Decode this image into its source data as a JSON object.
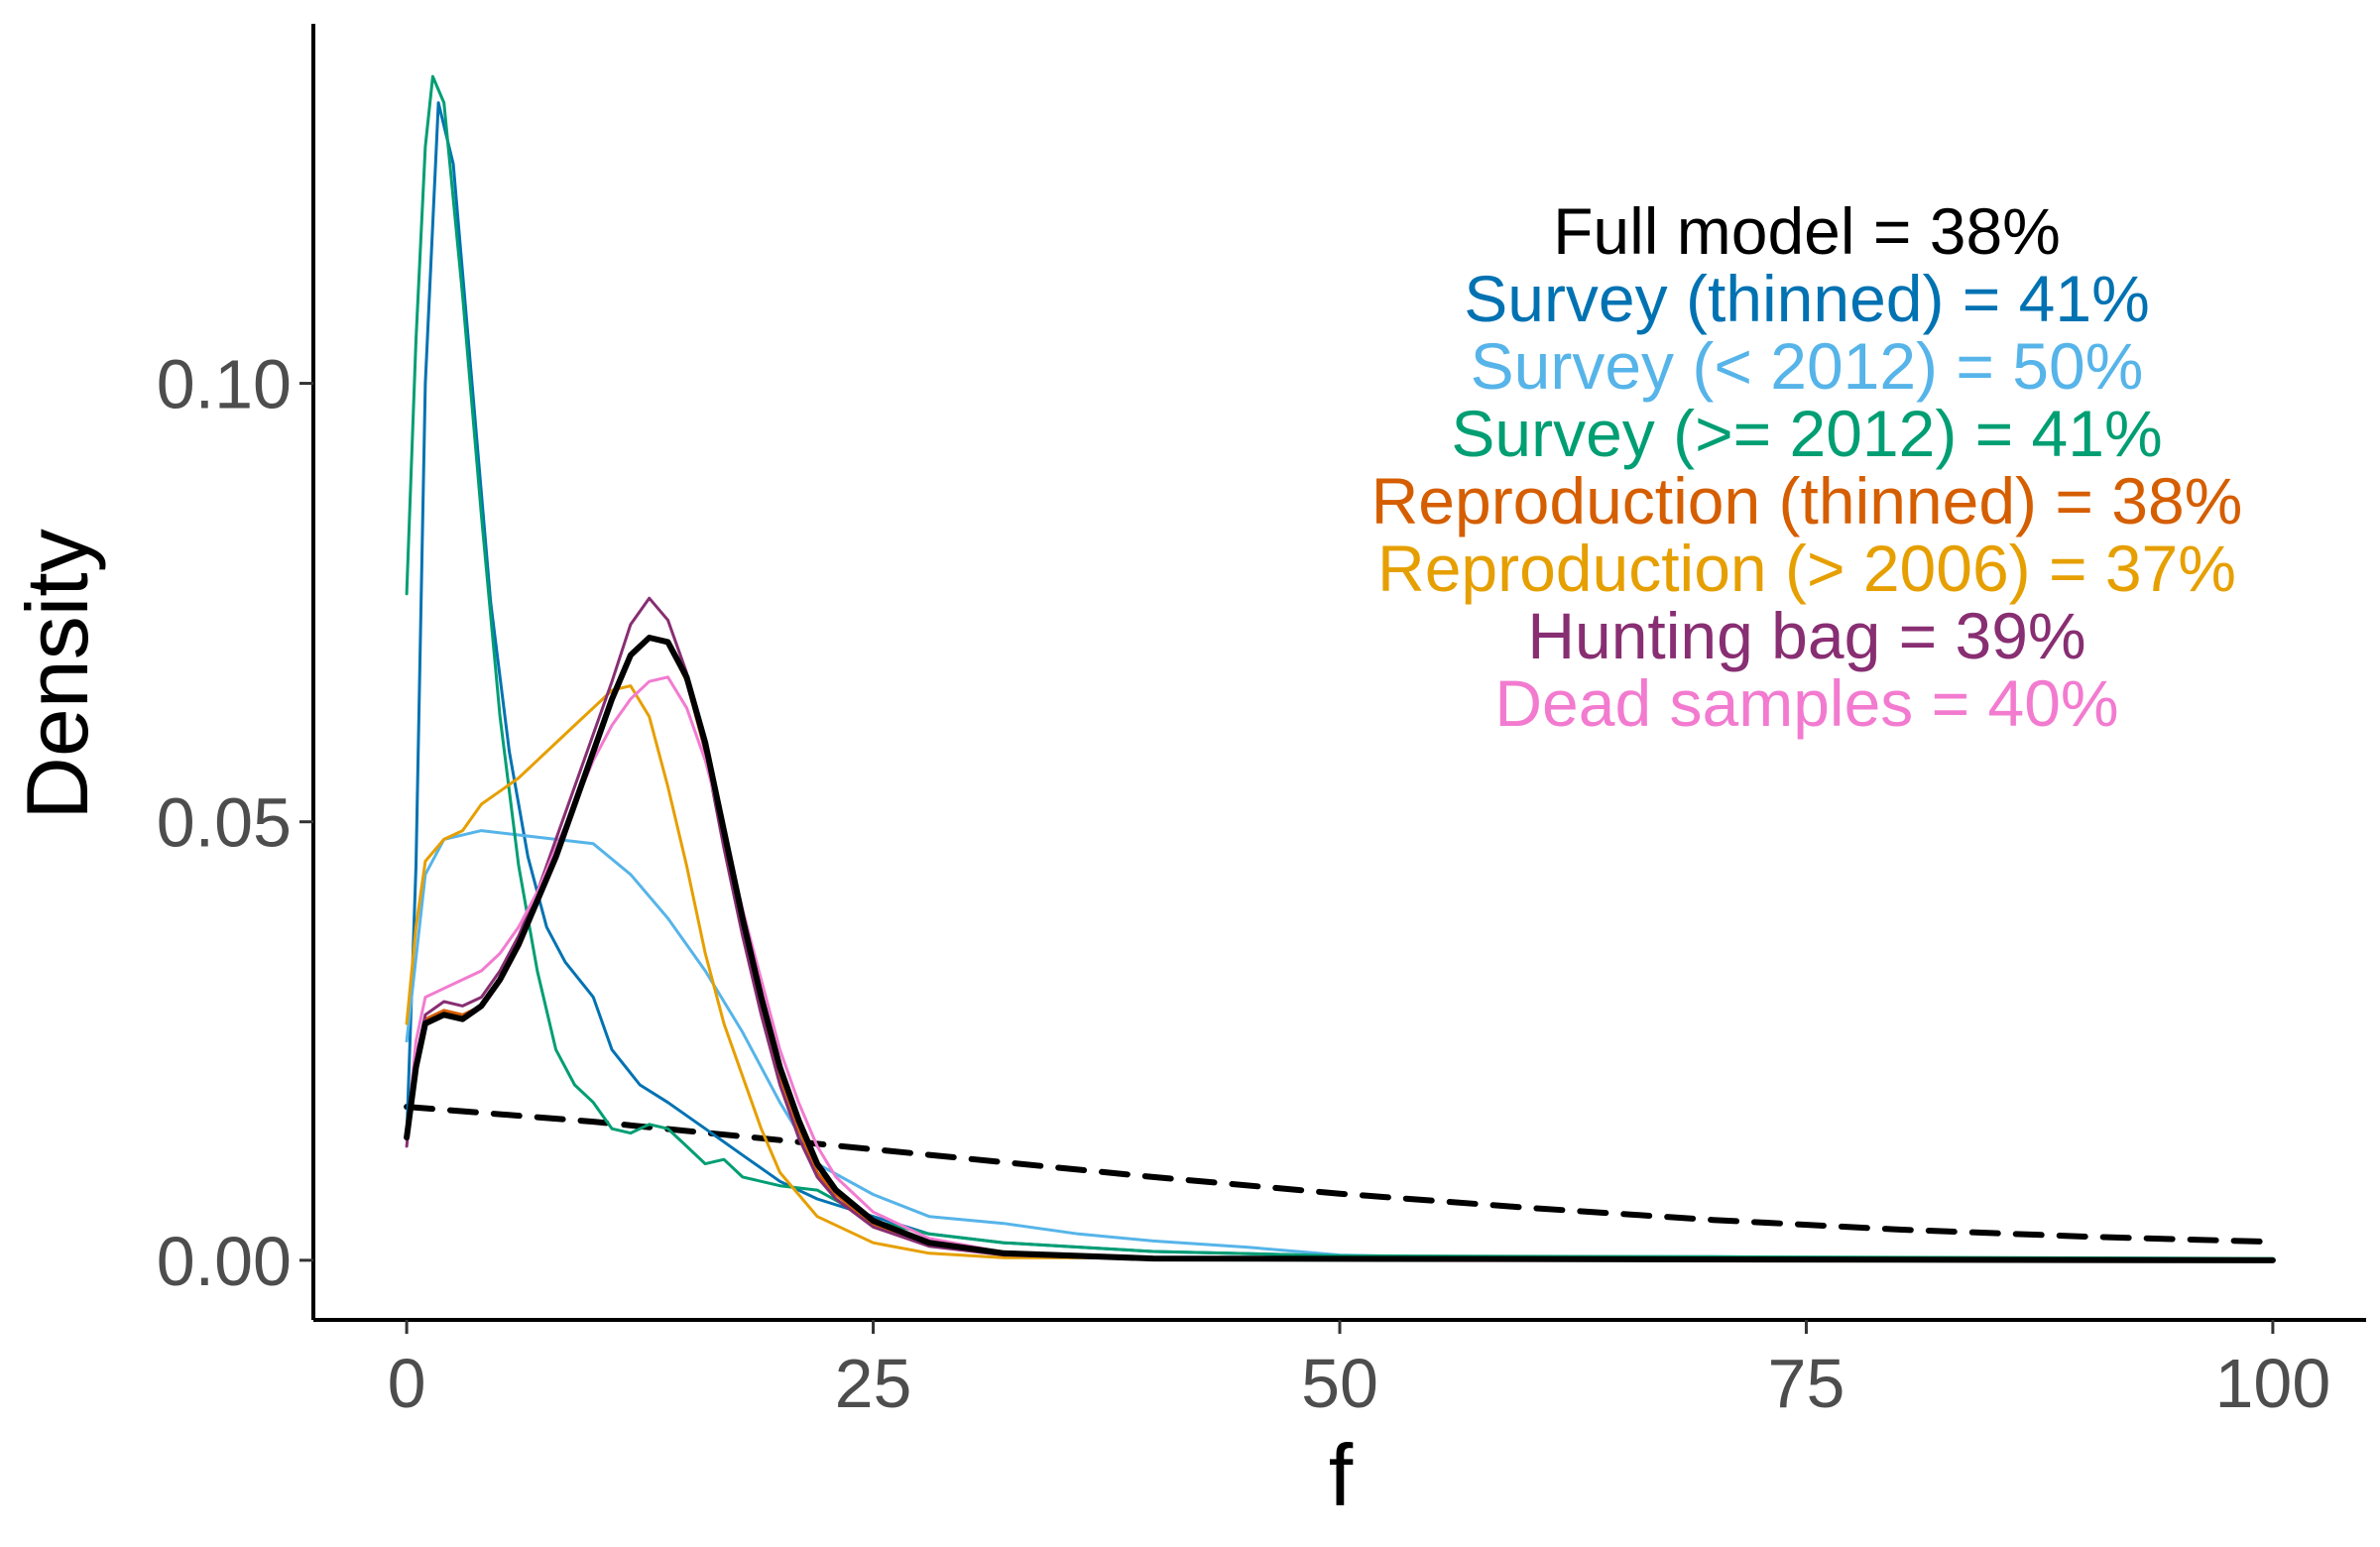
{
  "chart_data": {
    "type": "line",
    "xlabel": "f",
    "ylabel": "Density",
    "xlim": [
      -5,
      105
    ],
    "ylim": [
      -0.0068,
      0.141
    ],
    "x_ticks": [
      0,
      25,
      50,
      75,
      100
    ],
    "x_tick_labels": [
      "0",
      "25",
      "50",
      "75",
      "100"
    ],
    "y_ticks": [
      0.0,
      0.05,
      0.1
    ],
    "y_tick_labels": [
      "0.00",
      "0.05",
      "0.10"
    ],
    "grid": false,
    "legend": "none",
    "annotations": [
      {
        "text": "Full model = 38%",
        "color": "#000000"
      },
      {
        "text": "Survey (thinned) = 41%",
        "color": "#0072B2"
      },
      {
        "text": "Survey (< 2012) = 50%",
        "color": "#56B4E9"
      },
      {
        "text": "Survey (>= 2012) = 41%",
        "color": "#009E73"
      },
      {
        "text": "Reproduction (thinned) = 38%",
        "color": "#D55E00"
      },
      {
        "text": "Reproduction (> 2006) = 37%",
        "color": "#E69F00"
      },
      {
        "text": "Hunting bag = 39%",
        "color": "#882E72"
      },
      {
        "text": "Dead samples = 40%",
        "color": "#F27BD0"
      }
    ],
    "series": [
      {
        "color": "#000000",
        "dash": "dashed",
        "width": 6,
        "points": [
          [
            0,
            0.0175
          ],
          [
            10,
            0.0158
          ],
          [
            20,
            0.0137
          ],
          [
            30,
            0.0116
          ],
          [
            40,
            0.0095
          ],
          [
            50,
            0.0076
          ],
          [
            60,
            0.006
          ],
          [
            70,
            0.0046
          ],
          [
            80,
            0.0035
          ],
          [
            90,
            0.0027
          ],
          [
            100,
            0.0021
          ]
        ]
      },
      {
        "color": "#0072B2",
        "width": 3,
        "points": [
          [
            0,
            0.014
          ],
          [
            0.5,
            0.045
          ],
          [
            1,
            0.1
          ],
          [
            1.7,
            0.132
          ],
          [
            2.5,
            0.125
          ],
          [
            3.5,
            0.1
          ],
          [
            4.5,
            0.075
          ],
          [
            5.5,
            0.058
          ],
          [
            6.5,
            0.046
          ],
          [
            7.5,
            0.038
          ],
          [
            8.5,
            0.034
          ],
          [
            10,
            0.03
          ],
          [
            11,
            0.024
          ],
          [
            12.5,
            0.02
          ],
          [
            14,
            0.018
          ],
          [
            16,
            0.015
          ],
          [
            18,
            0.012
          ],
          [
            20,
            0.009
          ],
          [
            22,
            0.007
          ],
          [
            25,
            0.005
          ],
          [
            28,
            0.003
          ],
          [
            32,
            0.002
          ],
          [
            40,
            0.001
          ],
          [
            50,
            0.0005
          ],
          [
            60,
            0.0003
          ],
          [
            75,
            0.0002
          ],
          [
            100,
            0.0001
          ]
        ]
      },
      {
        "color": "#56B4E9",
        "width": 3,
        "points": [
          [
            0,
            0.025
          ],
          [
            1,
            0.044
          ],
          [
            2,
            0.048
          ],
          [
            4,
            0.049
          ],
          [
            6,
            0.0485
          ],
          [
            8,
            0.048
          ],
          [
            10,
            0.0475
          ],
          [
            12,
            0.044
          ],
          [
            14,
            0.039
          ],
          [
            16,
            0.033
          ],
          [
            18,
            0.026
          ],
          [
            20,
            0.018
          ],
          [
            22,
            0.011
          ],
          [
            25,
            0.0075
          ],
          [
            28,
            0.005
          ],
          [
            32,
            0.0042
          ],
          [
            36,
            0.003
          ],
          [
            40,
            0.0022
          ],
          [
            45,
            0.0015
          ],
          [
            50,
            0.0006
          ],
          [
            55,
            0.0004
          ],
          [
            65,
            0.0004
          ],
          [
            70,
            0.0004
          ],
          [
            80,
            0.0002
          ],
          [
            100,
            0.0001
          ]
        ]
      },
      {
        "color": "#009E73",
        "width": 3,
        "points": [
          [
            0,
            0.076
          ],
          [
            0.5,
            0.105
          ],
          [
            1,
            0.127
          ],
          [
            1.4,
            0.135
          ],
          [
            2,
            0.132
          ],
          [
            3,
            0.11
          ],
          [
            4,
            0.085
          ],
          [
            5,
            0.062
          ],
          [
            6,
            0.045
          ],
          [
            7,
            0.033
          ],
          [
            8,
            0.024
          ],
          [
            9,
            0.02
          ],
          [
            10,
            0.018
          ],
          [
            11,
            0.015
          ],
          [
            12,
            0.0145
          ],
          [
            13,
            0.0155
          ],
          [
            14,
            0.015
          ],
          [
            15,
            0.013
          ],
          [
            16,
            0.011
          ],
          [
            17,
            0.0115
          ],
          [
            18,
            0.0095
          ],
          [
            20,
            0.0085
          ],
          [
            22,
            0.008
          ],
          [
            25,
            0.0045
          ],
          [
            28,
            0.003
          ],
          [
            32,
            0.002
          ],
          [
            36,
            0.0015
          ],
          [
            40,
            0.001
          ],
          [
            50,
            0.0005
          ],
          [
            70,
            0.0004
          ],
          [
            100,
            0.0002
          ]
        ]
      },
      {
        "color": "#D55E00",
        "width": 3,
        "points": [
          [
            0,
            0.014
          ],
          [
            0.5,
            0.023
          ],
          [
            1,
            0.0275
          ],
          [
            2,
            0.0285
          ],
          [
            3,
            0.028
          ],
          [
            4,
            0.029
          ],
          [
            5,
            0.032
          ],
          [
            6,
            0.036
          ],
          [
            7,
            0.041
          ],
          [
            8,
            0.046
          ],
          [
            9,
            0.052
          ],
          [
            10,
            0.058
          ],
          [
            11,
            0.064
          ],
          [
            12,
            0.069
          ],
          [
            13,
            0.071
          ],
          [
            14,
            0.0705
          ],
          [
            15,
            0.066
          ],
          [
            16,
            0.058
          ],
          [
            17,
            0.048
          ],
          [
            18,
            0.038
          ],
          [
            19,
            0.029
          ],
          [
            20,
            0.021
          ],
          [
            21,
            0.015
          ],
          [
            22,
            0.01
          ],
          [
            23,
            0.0075
          ],
          [
            25,
            0.004
          ],
          [
            28,
            0.0018
          ],
          [
            32,
            0.0008
          ],
          [
            40,
            0.0002
          ],
          [
            100,
            0.0
          ]
        ]
      },
      {
        "color": "#E69F00",
        "width": 3,
        "points": [
          [
            0,
            0.027
          ],
          [
            0.5,
            0.038
          ],
          [
            1,
            0.0455
          ],
          [
            2,
            0.048
          ],
          [
            3,
            0.049
          ],
          [
            4,
            0.052
          ],
          [
            5,
            0.0535
          ],
          [
            6,
            0.055
          ],
          [
            7,
            0.057
          ],
          [
            8,
            0.059
          ],
          [
            9,
            0.061
          ],
          [
            10,
            0.063
          ],
          [
            11,
            0.065
          ],
          [
            12,
            0.0655
          ],
          [
            13,
            0.062
          ],
          [
            14,
            0.054
          ],
          [
            15,
            0.045
          ],
          [
            16,
            0.035
          ],
          [
            17,
            0.027
          ],
          [
            18,
            0.021
          ],
          [
            19,
            0.015
          ],
          [
            20,
            0.01
          ],
          [
            21,
            0.0075
          ],
          [
            22,
            0.005
          ],
          [
            25,
            0.002
          ],
          [
            28,
            0.0008
          ],
          [
            32,
            0.0003
          ],
          [
            100,
            0.0
          ]
        ]
      },
      {
        "color": "#882E72",
        "width": 3,
        "points": [
          [
            0,
            0.013
          ],
          [
            0.5,
            0.023
          ],
          [
            1,
            0.028
          ],
          [
            2,
            0.0295
          ],
          [
            3,
            0.029
          ],
          [
            4,
            0.03
          ],
          [
            5,
            0.033
          ],
          [
            6,
            0.037
          ],
          [
            7,
            0.042
          ],
          [
            8,
            0.048
          ],
          [
            9,
            0.054
          ],
          [
            10,
            0.06
          ],
          [
            11,
            0.066
          ],
          [
            12,
            0.0725
          ],
          [
            13,
            0.0755
          ],
          [
            14,
            0.073
          ],
          [
            15,
            0.067
          ],
          [
            16,
            0.058
          ],
          [
            17,
            0.047
          ],
          [
            18,
            0.037
          ],
          [
            19,
            0.028
          ],
          [
            20,
            0.02
          ],
          [
            21,
            0.014
          ],
          [
            22,
            0.0095
          ],
          [
            23,
            0.007
          ],
          [
            25,
            0.0038
          ],
          [
            28,
            0.0016
          ],
          [
            32,
            0.0006
          ],
          [
            40,
            0.0001
          ],
          [
            100,
            0.0
          ]
        ]
      },
      {
        "color": "#F27BD0",
        "width": 3,
        "points": [
          [
            0,
            0.014
          ],
          [
            0.5,
            0.025
          ],
          [
            1,
            0.03
          ],
          [
            2,
            0.031
          ],
          [
            3,
            0.032
          ],
          [
            4,
            0.033
          ],
          [
            5,
            0.035
          ],
          [
            6,
            0.038
          ],
          [
            7,
            0.042
          ],
          [
            8,
            0.047
          ],
          [
            9,
            0.052
          ],
          [
            10,
            0.057
          ],
          [
            11,
            0.061
          ],
          [
            12,
            0.064
          ],
          [
            13,
            0.066
          ],
          [
            14,
            0.0665
          ],
          [
            15,
            0.063
          ],
          [
            16,
            0.057
          ],
          [
            17,
            0.049
          ],
          [
            18,
            0.04
          ],
          [
            19,
            0.032
          ],
          [
            20,
            0.024
          ],
          [
            21,
            0.018
          ],
          [
            22,
            0.013
          ],
          [
            23,
            0.0095
          ],
          [
            25,
            0.0055
          ],
          [
            28,
            0.0025
          ],
          [
            32,
            0.0009
          ],
          [
            40,
            0.0002
          ],
          [
            100,
            0.0
          ]
        ]
      },
      {
        "color": "#000000",
        "width": 6,
        "points": [
          [
            0,
            0.014
          ],
          [
            0.5,
            0.022
          ],
          [
            1,
            0.027
          ],
          [
            2,
            0.028
          ],
          [
            3,
            0.0275
          ],
          [
            4,
            0.029
          ],
          [
            5,
            0.032
          ],
          [
            6,
            0.036
          ],
          [
            7,
            0.041
          ],
          [
            8,
            0.046
          ],
          [
            9,
            0.052
          ],
          [
            10,
            0.058
          ],
          [
            11,
            0.064
          ],
          [
            12,
            0.069
          ],
          [
            13,
            0.071
          ],
          [
            14,
            0.0705
          ],
          [
            15,
            0.0665
          ],
          [
            16,
            0.059
          ],
          [
            17,
            0.049
          ],
          [
            18,
            0.039
          ],
          [
            19,
            0.03
          ],
          [
            20,
            0.022
          ],
          [
            21,
            0.016
          ],
          [
            22,
            0.011
          ],
          [
            23,
            0.008
          ],
          [
            25,
            0.0045
          ],
          [
            28,
            0.002
          ],
          [
            32,
            0.0008
          ],
          [
            40,
            0.0002
          ],
          [
            100,
            0.0
          ]
        ]
      }
    ]
  }
}
